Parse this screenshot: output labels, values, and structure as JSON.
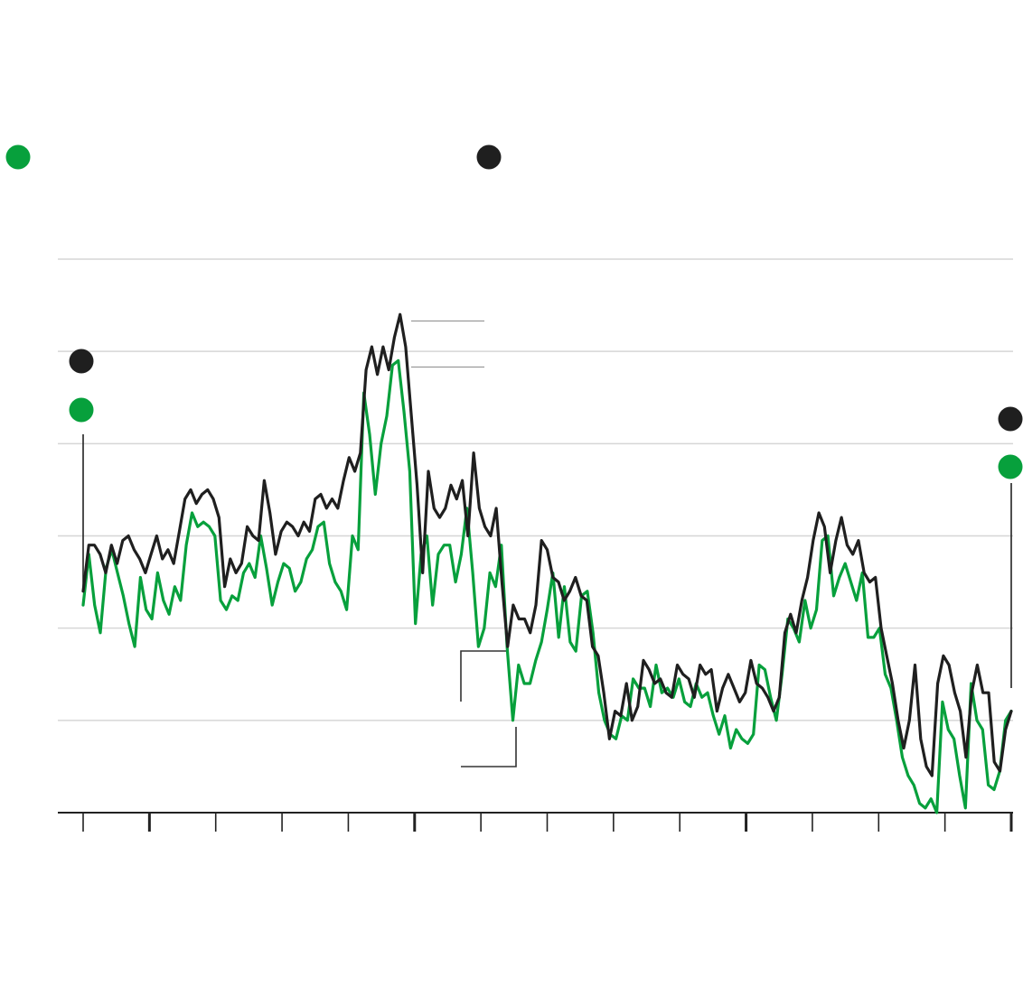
{
  "colors": {
    "series_black": "#1f1f1f",
    "series_green": "#07a03c",
    "grid": "#d6d6d6",
    "axis": "#222222"
  },
  "legend": [
    {
      "marker": "green-dot",
      "color": "#07a03c",
      "label": ""
    },
    {
      "marker": "black-dot",
      "color": "#1f1f1f",
      "label": ""
    }
  ],
  "chart_data": {
    "type": "line",
    "title": "",
    "xlabel": "",
    "ylabel": "",
    "grid": true,
    "ylim": [
      0,
      6
    ],
    "gridlines": [
      0,
      1,
      2,
      3,
      4,
      5,
      6
    ],
    "x_ticks": 15,
    "x_major_ticks": [
      1,
      5,
      10,
      14
    ],
    "series": [
      {
        "key": "black",
        "values": [
          2.4,
          2.9,
          2.9,
          2.8,
          2.6,
          2.9,
          2.7,
          2.95,
          3.0,
          2.85,
          2.75,
          2.6,
          2.8,
          3.0,
          2.75,
          2.85,
          2.7,
          3.05,
          3.4,
          3.5,
          3.35,
          3.45,
          3.5,
          3.4,
          3.2,
          2.45,
          2.75,
          2.6,
          2.7,
          3.1,
          3.0,
          2.95,
          3.6,
          3.25,
          2.8,
          3.05,
          3.15,
          3.1,
          3.0,
          3.15,
          3.05,
          3.4,
          3.45,
          3.3,
          3.4,
          3.3,
          3.6,
          3.85,
          3.7,
          3.9,
          4.8,
          5.05,
          4.75,
          5.05,
          4.8,
          5.15,
          5.4,
          5.05,
          4.3,
          3.55,
          2.6,
          3.7,
          3.3,
          3.2,
          3.3,
          3.55,
          3.4,
          3.6,
          3.0,
          3.9,
          3.3,
          3.1,
          3.0,
          3.3,
          2.5,
          1.8,
          2.25,
          2.1,
          2.1,
          1.95,
          2.25,
          2.95,
          2.85,
          2.55,
          2.5,
          2.3,
          2.4,
          2.55,
          2.35,
          2.3,
          1.8,
          1.7,
          1.3,
          0.8,
          1.1,
          1.05,
          1.4,
          1.0,
          1.15,
          1.65,
          1.55,
          1.4,
          1.45,
          1.3,
          1.25,
          1.6,
          1.5,
          1.45,
          1.25,
          1.6,
          1.5,
          1.55,
          1.1,
          1.35,
          1.5,
          1.35,
          1.2,
          1.3,
          1.65,
          1.4,
          1.35,
          1.25,
          1.1,
          1.25,
          1.95,
          2.15,
          1.95,
          2.3,
          2.55,
          2.95,
          3.25,
          3.1,
          2.6,
          2.95,
          3.2,
          2.9,
          2.8,
          2.95,
          2.6,
          2.5,
          2.55,
          2.0,
          1.7,
          1.4,
          1.0,
          0.7,
          1.0,
          1.6,
          0.8,
          0.5,
          0.4,
          1.4,
          1.7,
          1.6,
          1.3,
          1.1,
          0.6,
          1.3,
          1.6,
          1.3,
          1.3,
          0.55,
          0.45,
          0.9,
          1.1
        ]
      },
      {
        "key": "green",
        "values": [
          2.25,
          2.8,
          2.25,
          1.95,
          2.65,
          2.85,
          2.6,
          2.35,
          2.05,
          1.8,
          2.55,
          2.2,
          2.1,
          2.6,
          2.3,
          2.15,
          2.45,
          2.3,
          2.9,
          3.25,
          3.1,
          3.15,
          3.1,
          3.0,
          2.3,
          2.2,
          2.35,
          2.3,
          2.6,
          2.7,
          2.55,
          3.0,
          2.65,
          2.25,
          2.5,
          2.7,
          2.65,
          2.4,
          2.5,
          2.75,
          2.85,
          3.1,
          3.15,
          2.7,
          2.5,
          2.4,
          2.2,
          3.0,
          2.85,
          4.55,
          4.1,
          3.45,
          4.0,
          4.3,
          4.85,
          4.9,
          4.35,
          3.7,
          2.05,
          2.8,
          3.0,
          2.25,
          2.8,
          2.9,
          2.9,
          2.5,
          2.8,
          3.3,
          2.6,
          1.8,
          2.0,
          2.6,
          2.45,
          2.9,
          1.8,
          1.0,
          1.6,
          1.4,
          1.4,
          1.65,
          1.85,
          2.2,
          2.6,
          1.9,
          2.45,
          1.85,
          1.75,
          2.35,
          2.4,
          1.95,
          1.3,
          1.0,
          0.85,
          0.8,
          1.05,
          1.0,
          1.45,
          1.35,
          1.35,
          1.15,
          1.6,
          1.3,
          1.35,
          1.25,
          1.45,
          1.2,
          1.15,
          1.4,
          1.25,
          1.3,
          1.05,
          0.85,
          1.05,
          0.7,
          0.9,
          0.8,
          0.75,
          0.85,
          1.6,
          1.55,
          1.25,
          1.0,
          1.5,
          2.1,
          2.0,
          1.85,
          2.3,
          2.0,
          2.2,
          2.95,
          3.0,
          2.35,
          2.55,
          2.7,
          2.5,
          2.3,
          2.6,
          1.9,
          1.9,
          2.0,
          1.5,
          1.35,
          1.0,
          0.6,
          0.4,
          0.3,
          0.1,
          0.05,
          0.15,
          0.0,
          1.2,
          0.9,
          0.8,
          0.4,
          0.05,
          1.4,
          1.0,
          0.9,
          0.3,
          0.25,
          0.45,
          1.0,
          1.1
        ]
      }
    ]
  }
}
